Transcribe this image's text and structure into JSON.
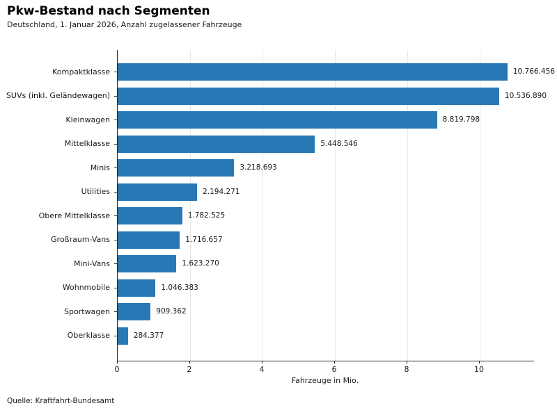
{
  "header": {
    "title": "Pkw-Bestand nach Segmenten",
    "subtitle": "Deutschland, 1. Januar 2026, Anzahl zugelassener Fahrzeuge"
  },
  "footer": {
    "source": "Quelle: Kraftfahrt-Bundesamt"
  },
  "chart_data": {
    "type": "bar",
    "orientation": "horizontal",
    "title": "Pkw-Bestand nach Segmenten",
    "subtitle": "Deutschland, 1. Januar 2026, Anzahl zugelassener Fahrzeuge",
    "xlabel": "Fahrzeuge in Mio.",
    "ylabel": "",
    "xlim": [
      0,
      11.5
    ],
    "xticks": [
      0,
      2,
      4,
      6,
      8,
      10
    ],
    "grid": "vertical-gridlines-on",
    "legend": "none",
    "bar_color": "#2878b5",
    "unit": "Mio. Fahrzeuge",
    "categories": [
      "Kompaktklasse",
      "SUVs (inkl. Geländewagen)",
      "Kleinwagen",
      "Mittelklasse",
      "Minis",
      "Utilities",
      "Obere Mittelklasse",
      "Großraum-Vans",
      "Mini-Vans",
      "Wohnmobile",
      "Sportwagen",
      "Oberklasse"
    ],
    "values": [
      10766456,
      10536890,
      8819798,
      5448546,
      3218693,
      2194271,
      1782525,
      1716657,
      1623270,
      1046383,
      909362,
      284377
    ],
    "value_labels": [
      "10.766.456",
      "10.536.890",
      "8.819.798",
      "5.448.546",
      "3.218.693",
      "2.194.271",
      "1.782.525",
      "1.716.657",
      "1.623.270",
      "1.046.383",
      "909.362",
      "284.377"
    ],
    "source": "Quelle: Kraftfahrt-Bundesamt"
  }
}
